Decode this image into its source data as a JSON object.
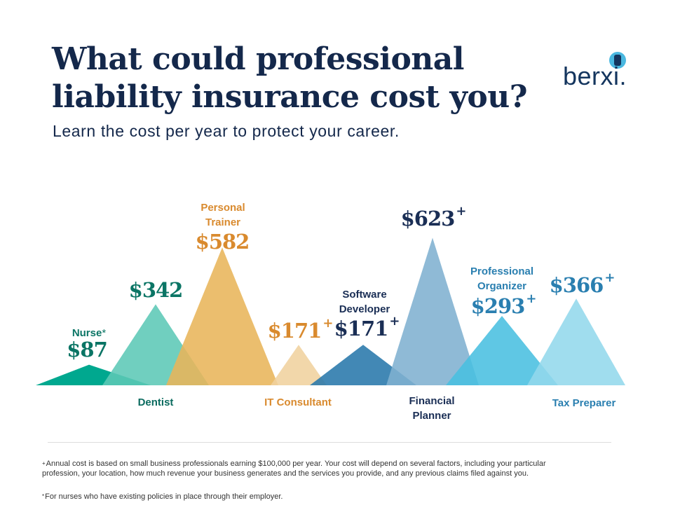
{
  "header": {
    "title": "What could professional liability insurance cost you?",
    "subtitle": "Learn the cost per year to protect your career.",
    "logo": "berxi."
  },
  "chart_data": {
    "type": "triangle-bar",
    "title": "What could professional liability insurance cost you?",
    "subtitle": "Learn the cost per year to protect your career.",
    "unit": "USD per year",
    "items": [
      {
        "label": "Nurse",
        "marker": "*",
        "value": 87,
        "display": "$87",
        "color": "#00a88f"
      },
      {
        "label": "Dentist",
        "marker": "",
        "value": 342,
        "display": "$342",
        "color": "#5cc8b6"
      },
      {
        "label": "Personal Trainer",
        "marker": "",
        "value": 582,
        "display": "$582",
        "color": "#e8b55a"
      },
      {
        "label": "IT Consultant",
        "marker": "+",
        "value": 171,
        "display": "$171",
        "color": "#f0d29e"
      },
      {
        "label": "Software Developer",
        "marker": "+",
        "value": 171,
        "display": "$171",
        "color": "#2878ab"
      },
      {
        "label": "Financial Planner",
        "marker": "+",
        "value": 623,
        "display": "$623",
        "color": "#7fb0d0"
      },
      {
        "label": "Professional Organizer",
        "marker": "+",
        "value": 293,
        "display": "$293",
        "color": "#49bfe0"
      },
      {
        "label": "Tax Preparer",
        "marker": "+",
        "value": 366,
        "display": "$366",
        "color": "#93d8ec"
      }
    ]
  },
  "footnotes": [
    {
      "marker": "+",
      "text": "Annual cost is based on small business professionals earning $100,000 per year. Your cost will depend on several factors, including your particular profession, your location, how much revenue your business generates and the services you provide, and any previous claims filed against you."
    },
    {
      "marker": "*",
      "text": "For nurses who have existing policies in place through their employer."
    }
  ]
}
